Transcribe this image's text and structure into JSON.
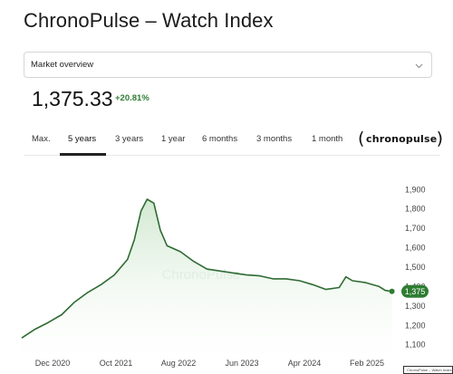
{
  "header": {
    "title": "ChronoPulse – Watch Index"
  },
  "market_select": {
    "value": "Market overview"
  },
  "quote": {
    "price": "1,375.33",
    "change": "+20.81%"
  },
  "tabs": [
    {
      "label": "Max.",
      "active": false
    },
    {
      "label": "5 years",
      "active": true
    },
    {
      "label": "3 years",
      "active": false
    },
    {
      "label": "1 year",
      "active": false
    },
    {
      "label": "6 months",
      "active": false
    },
    {
      "label": "3 months",
      "active": false
    },
    {
      "label": "1 month",
      "active": false
    }
  ],
  "brand": {
    "name": "chronopulse"
  },
  "footer_thumb": {
    "label": "ChronoPulse – Watch Index"
  },
  "colors": {
    "line": "#2f6b33",
    "fill_top": "#cfe7cf",
    "marker": "#2e7d32",
    "accent_text": "#2e7d32"
  },
  "icons": {
    "select": "chevron-down-icon"
  },
  "chart_data": {
    "type": "area",
    "watermark": "ChronoPulse",
    "x_ticks": [
      "Dec 2020",
      "Oct 2021",
      "Aug 2022",
      "Jun 2023",
      "Apr 2024",
      "Feb 2025"
    ],
    "y_ticks": [
      1100,
      1200,
      1300,
      1400,
      1500,
      1600,
      1700,
      1800,
      1900
    ],
    "ylim": [
      1080,
      1920
    ],
    "grid": false,
    "last_value_label": "1,375",
    "series": [
      {
        "x": [
          "2020-08",
          "2020-10",
          "2020-12",
          "2021-02",
          "2021-04",
          "2021-06",
          "2021-08",
          "2021-10",
          "2021-12",
          "2022-01",
          "2022-02",
          "2022-03",
          "2022-04",
          "2022-05",
          "2022-06",
          "2022-08",
          "2022-10",
          "2022-12",
          "2023-02",
          "2023-04",
          "2023-06",
          "2023-08",
          "2023-10",
          "2023-12",
          "2024-02",
          "2024-04",
          "2024-06",
          "2024-08",
          "2024-09",
          "2024-10",
          "2024-12",
          "2025-02",
          "2025-03",
          "2025-04"
        ],
        "values": [
          1135,
          1180,
          1215,
          1255,
          1320,
          1370,
          1410,
          1460,
          1540,
          1640,
          1790,
          1850,
          1830,
          1690,
          1610,
          1580,
          1530,
          1490,
          1480,
          1470,
          1460,
          1455,
          1440,
          1440,
          1430,
          1410,
          1385,
          1395,
          1450,
          1430,
          1420,
          1400,
          1380,
          1375
        ]
      }
    ]
  }
}
